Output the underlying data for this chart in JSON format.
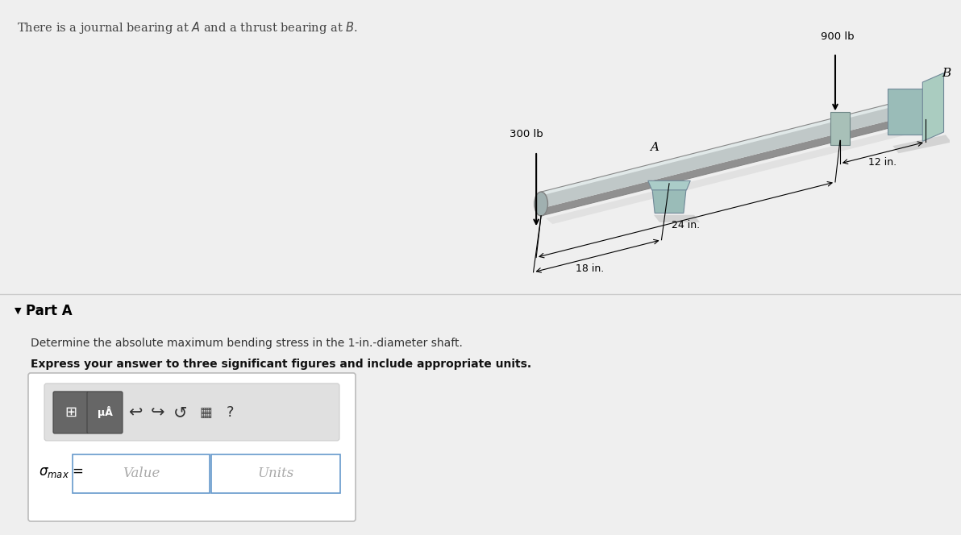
{
  "top_bg_color": "#ddeef5",
  "bottom_bg_color": "#efefef",
  "diagram_bg_color": "#ffffff",
  "top_text": "There is a journal bearing at $\\mathit{A}$ and a thrust bearing at $\\mathit{B}$.",
  "top_text_color": "#444444",
  "part_a_label": "Part A",
  "desc_line1": "Determine the absolute maximum bending stress in the 1-in.-diameter shaft.",
  "desc_line2": "Express your answer to three significant figures and include appropriate units.",
  "value_placeholder": "Value",
  "units_placeholder": "Units",
  "load1_label": "300 lb",
  "load2_label": "900 lb",
  "label_A": "A",
  "label_B": "B",
  "dim1": "18 in.",
  "dim2": "24 in.",
  "dim3": "12 in.",
  "shaft_color_top": "#c8d8d8",
  "shaft_color_mid": "#b0c8c8",
  "shaft_color_bot": "#98b0b0",
  "bearing_color": "#a0c0b8",
  "wall_color": "#b8d0c8",
  "shadow_color": "#d0d0d0"
}
